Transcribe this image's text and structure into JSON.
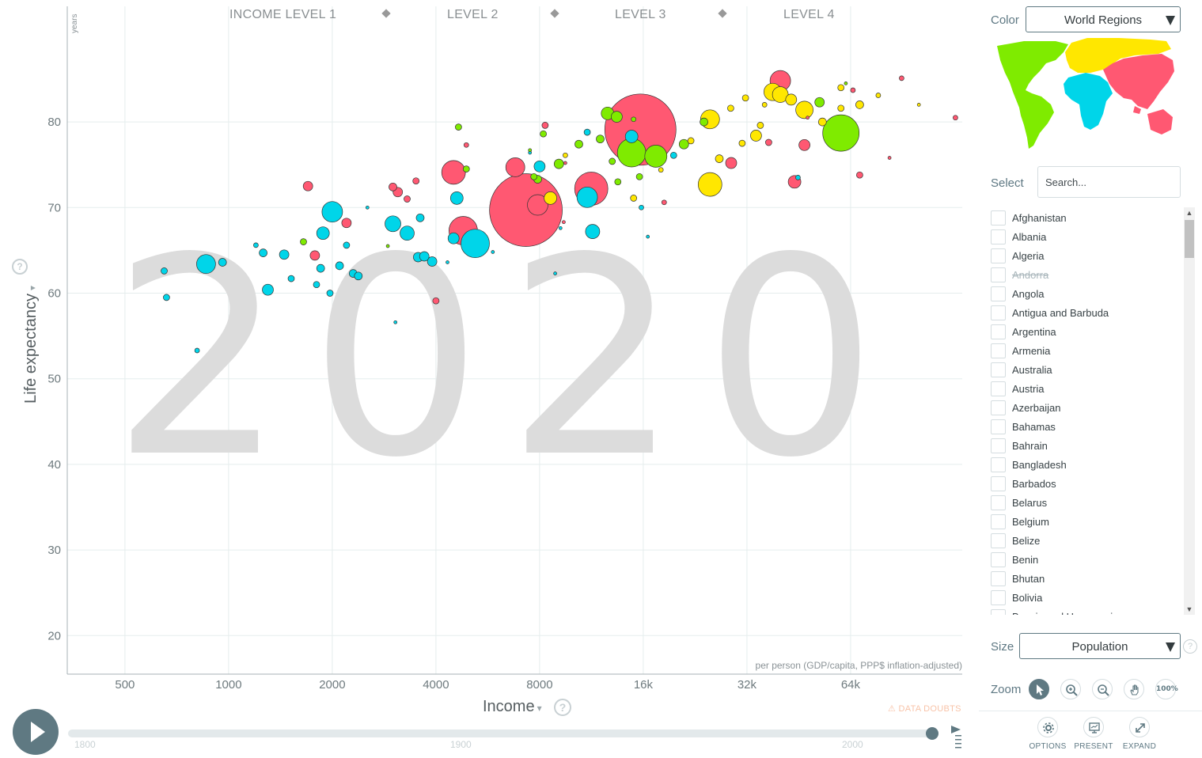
{
  "chart": {
    "year": "2020",
    "years_label": "years",
    "level_labels": [
      "INCOME LEVEL 1",
      "LEVEL 2",
      "LEVEL 3",
      "LEVEL 4"
    ],
    "y_axis_title": "Life expectancy",
    "x_axis_title": "Income",
    "x_unit_label": "per person (GDP/capita, PPP$ inflation-adjusted)",
    "data_doubts_label": "DATA DOUBTS",
    "help_glyph": "?",
    "dropdown_glyph": "▾"
  },
  "chart_data": {
    "type": "scatter",
    "xlabel": "Income",
    "ylabel": "Life expectancy",
    "xscale": "log2",
    "xlim": [
      340,
      135000
    ],
    "ylim": [
      15.5,
      93.5
    ],
    "x_ticks": [
      500,
      1000,
      2000,
      4000,
      8000,
      16000,
      32000,
      64000
    ],
    "x_tick_labels": [
      "500",
      "1000",
      "2000",
      "4000",
      "8000",
      "16k",
      "32k",
      "64k"
    ],
    "y_ticks": [
      20,
      30,
      40,
      50,
      60,
      70,
      80
    ],
    "grid": true,
    "region_colors": {
      "africa": "#00d5e9",
      "asia": "#ff5872",
      "europe": "#ffe700",
      "americas": "#7feb00"
    },
    "points": [
      {
        "x": 15700,
        "y": 79.1,
        "r": 45,
        "c": "asia"
      },
      {
        "x": 7300,
        "y": 69.7,
        "r": 46,
        "c": "asia"
      },
      {
        "x": 60000,
        "y": 78.7,
        "r": 23,
        "c": "americas"
      },
      {
        "x": 11300,
        "y": 72.2,
        "r": 21,
        "c": "asia"
      },
      {
        "x": 4800,
        "y": 67.3,
        "r": 18,
        "c": "asia"
      },
      {
        "x": 5200,
        "y": 65.8,
        "r": 18,
        "c": "africa"
      },
      {
        "x": 4500,
        "y": 74.1,
        "r": 15,
        "c": "asia"
      },
      {
        "x": 14800,
        "y": 76.4,
        "r": 18,
        "c": "americas"
      },
      {
        "x": 17400,
        "y": 76.0,
        "r": 14,
        "c": "americas"
      },
      {
        "x": 2000,
        "y": 69.5,
        "r": 13,
        "c": "africa"
      },
      {
        "x": 860,
        "y": 63.4,
        "r": 12,
        "c": "africa"
      },
      {
        "x": 40000,
        "y": 84.8,
        "r": 13,
        "c": "asia"
      },
      {
        "x": 25000,
        "y": 72.7,
        "r": 15,
        "c": "europe"
      },
      {
        "x": 7900,
        "y": 70.3,
        "r": 13,
        "c": "asia"
      },
      {
        "x": 11000,
        "y": 71.2,
        "r": 13,
        "c": "africa"
      },
      {
        "x": 25000,
        "y": 80.3,
        "r": 12,
        "c": "europe"
      },
      {
        "x": 47000,
        "y": 81.4,
        "r": 11,
        "c": "europe"
      },
      {
        "x": 38000,
        "y": 83.5,
        "r": 11,
        "c": "europe"
      },
      {
        "x": 40000,
        "y": 83.2,
        "r": 10,
        "c": "europe"
      },
      {
        "x": 6800,
        "y": 74.7,
        "r": 12,
        "c": "asia"
      },
      {
        "x": 3000,
        "y": 68.1,
        "r": 10,
        "c": "africa"
      },
      {
        "x": 3300,
        "y": 67.0,
        "r": 9,
        "c": "africa"
      },
      {
        "x": 11400,
        "y": 67.2,
        "r": 9,
        "c": "africa"
      },
      {
        "x": 1880,
        "y": 67.0,
        "r": 8,
        "c": "africa"
      },
      {
        "x": 4600,
        "y": 71.1,
        "r": 8,
        "c": "africa"
      },
      {
        "x": 4500,
        "y": 66.4,
        "r": 7,
        "c": "africa"
      },
      {
        "x": 3550,
        "y": 64.2,
        "r": 6,
        "c": "africa"
      },
      {
        "x": 3900,
        "y": 63.7,
        "r": 6,
        "c": "africa"
      },
      {
        "x": 1300,
        "y": 60.4,
        "r": 7,
        "c": "africa"
      },
      {
        "x": 1450,
        "y": 64.5,
        "r": 6,
        "c": "africa"
      },
      {
        "x": 1780,
        "y": 64.4,
        "r": 6,
        "c": "asia"
      },
      {
        "x": 1700,
        "y": 72.5,
        "r": 6,
        "c": "asia"
      },
      {
        "x": 8000,
        "y": 74.8,
        "r": 7,
        "c": "africa"
      },
      {
        "x": 14800,
        "y": 78.3,
        "r": 8,
        "c": "africa"
      },
      {
        "x": 12600,
        "y": 81.0,
        "r": 8,
        "c": "americas"
      },
      {
        "x": 13400,
        "y": 80.6,
        "r": 7,
        "c": "americas"
      },
      {
        "x": 21000,
        "y": 77.4,
        "r": 6,
        "c": "americas"
      },
      {
        "x": 34000,
        "y": 78.4,
        "r": 7,
        "c": "europe"
      },
      {
        "x": 9100,
        "y": 75.1,
        "r": 6,
        "c": "americas"
      },
      {
        "x": 10400,
        "y": 77.4,
        "r": 5,
        "c": "americas"
      },
      {
        "x": 47000,
        "y": 77.3,
        "r": 7,
        "c": "asia"
      },
      {
        "x": 68000,
        "y": 82.0,
        "r": 5,
        "c": "europe"
      },
      {
        "x": 52000,
        "y": 82.3,
        "r": 6,
        "c": "americas"
      },
      {
        "x": 43000,
        "y": 82.6,
        "r": 7,
        "c": "europe"
      },
      {
        "x": 2200,
        "y": 68.2,
        "r": 6,
        "c": "asia"
      },
      {
        "x": 3100,
        "y": 71.8,
        "r": 6,
        "c": "asia"
      },
      {
        "x": 3000,
        "y": 72.4,
        "r": 5,
        "c": "asia"
      },
      {
        "x": 2100,
        "y": 63.2,
        "r": 5,
        "c": "africa"
      },
      {
        "x": 2200,
        "y": 65.6,
        "r": 4,
        "c": "africa"
      },
      {
        "x": 1850,
        "y": 62.9,
        "r": 5,
        "c": "africa"
      },
      {
        "x": 2300,
        "y": 62.3,
        "r": 5,
        "c": "africa"
      },
      {
        "x": 2380,
        "y": 62.0,
        "r": 5,
        "c": "africa"
      },
      {
        "x": 1970,
        "y": 60.0,
        "r": 4,
        "c": "africa"
      },
      {
        "x": 1800,
        "y": 61.0,
        "r": 4,
        "c": "africa"
      },
      {
        "x": 1650,
        "y": 66.0,
        "r": 4,
        "c": "americas"
      },
      {
        "x": 650,
        "y": 62.6,
        "r": 4,
        "c": "africa"
      },
      {
        "x": 660,
        "y": 59.5,
        "r": 4,
        "c": "africa"
      },
      {
        "x": 960,
        "y": 63.6,
        "r": 5,
        "c": "africa"
      },
      {
        "x": 1260,
        "y": 64.7,
        "r": 5,
        "c": "africa"
      },
      {
        "x": 810,
        "y": 53.3,
        "r": 3,
        "c": "africa"
      },
      {
        "x": 1200,
        "y": 65.6,
        "r": 3,
        "c": "africa"
      },
      {
        "x": 1520,
        "y": 61.7,
        "r": 4,
        "c": "africa"
      },
      {
        "x": 3050,
        "y": 56.6,
        "r": 2,
        "c": "africa"
      },
      {
        "x": 4000,
        "y": 59.1,
        "r": 4,
        "c": "asia"
      },
      {
        "x": 3600,
        "y": 68.8,
        "r": 5,
        "c": "africa"
      },
      {
        "x": 3700,
        "y": 64.3,
        "r": 6,
        "c": "africa"
      },
      {
        "x": 3500,
        "y": 73.1,
        "r": 4,
        "c": "asia"
      },
      {
        "x": 3300,
        "y": 71.0,
        "r": 4,
        "c": "asia"
      },
      {
        "x": 4650,
        "y": 79.4,
        "r": 4,
        "c": "americas"
      },
      {
        "x": 4900,
        "y": 74.5,
        "r": 4,
        "c": "americas"
      },
      {
        "x": 4900,
        "y": 77.3,
        "r": 3,
        "c": "asia"
      },
      {
        "x": 7500,
        "y": 76.4,
        "r": 2,
        "c": "africa"
      },
      {
        "x": 7700,
        "y": 73.6,
        "r": 4,
        "c": "americas"
      },
      {
        "x": 8200,
        "y": 78.6,
        "r": 4,
        "c": "americas"
      },
      {
        "x": 8300,
        "y": 79.6,
        "r": 4,
        "c": "asia"
      },
      {
        "x": 7900,
        "y": 73.3,
        "r": 5,
        "c": "americas"
      },
      {
        "x": 8600,
        "y": 71.1,
        "r": 8,
        "c": "europe"
      },
      {
        "x": 9500,
        "y": 76.1,
        "r": 3,
        "c": "europe"
      },
      {
        "x": 9500,
        "y": 75.2,
        "r": 2,
        "c": "asia"
      },
      {
        "x": 9200,
        "y": 67.6,
        "r": 2,
        "c": "africa"
      },
      {
        "x": 9400,
        "y": 68.3,
        "r": 2,
        "c": "asia"
      },
      {
        "x": 11000,
        "y": 78.8,
        "r": 4,
        "c": "africa"
      },
      {
        "x": 12000,
        "y": 78.0,
        "r": 5,
        "c": "americas"
      },
      {
        "x": 13000,
        "y": 75.4,
        "r": 4,
        "c": "americas"
      },
      {
        "x": 13500,
        "y": 73.0,
        "r": 4,
        "c": "americas"
      },
      {
        "x": 15000,
        "y": 80.3,
        "r": 3,
        "c": "americas"
      },
      {
        "x": 15600,
        "y": 73.6,
        "r": 4,
        "c": "americas"
      },
      {
        "x": 15000,
        "y": 71.1,
        "r": 4,
        "c": "europe"
      },
      {
        "x": 15800,
        "y": 70.0,
        "r": 3,
        "c": "africa"
      },
      {
        "x": 16500,
        "y": 66.6,
        "r": 2,
        "c": "africa"
      },
      {
        "x": 18400,
        "y": 70.6,
        "r": 3,
        "c": "asia"
      },
      {
        "x": 18000,
        "y": 74.4,
        "r": 3,
        "c": "europe"
      },
      {
        "x": 19600,
        "y": 76.1,
        "r": 4,
        "c": "africa"
      },
      {
        "x": 22000,
        "y": 77.8,
        "r": 4,
        "c": "europe"
      },
      {
        "x": 24000,
        "y": 80.0,
        "r": 5,
        "c": "americas"
      },
      {
        "x": 26600,
        "y": 75.7,
        "r": 5,
        "c": "europe"
      },
      {
        "x": 28700,
        "y": 81.6,
        "r": 4,
        "c": "europe"
      },
      {
        "x": 28800,
        "y": 75.2,
        "r": 7,
        "c": "asia"
      },
      {
        "x": 31000,
        "y": 77.5,
        "r": 4,
        "c": "europe"
      },
      {
        "x": 31700,
        "y": 82.8,
        "r": 4,
        "c": "europe"
      },
      {
        "x": 35000,
        "y": 79.6,
        "r": 4,
        "c": "europe"
      },
      {
        "x": 36000,
        "y": 82.0,
        "r": 3,
        "c": "europe"
      },
      {
        "x": 37000,
        "y": 77.6,
        "r": 4,
        "c": "asia"
      },
      {
        "x": 53000,
        "y": 80.0,
        "r": 5,
        "c": "europe"
      },
      {
        "x": 60000,
        "y": 81.6,
        "r": 4,
        "c": "europe"
      },
      {
        "x": 60000,
        "y": 84.0,
        "r": 4,
        "c": "europe"
      },
      {
        "x": 65000,
        "y": 83.7,
        "r": 3,
        "c": "asia"
      },
      {
        "x": 77000,
        "y": 83.1,
        "r": 3,
        "c": "europe"
      },
      {
        "x": 68000,
        "y": 73.8,
        "r": 4,
        "c": "asia"
      },
      {
        "x": 90000,
        "y": 85.1,
        "r": 3,
        "c": "asia"
      },
      {
        "x": 83000,
        "y": 75.8,
        "r": 2,
        "c": "asia"
      },
      {
        "x": 101000,
        "y": 82.0,
        "r": 2,
        "c": "europe"
      },
      {
        "x": 129000,
        "y": 80.5,
        "r": 3,
        "c": "asia"
      },
      {
        "x": 62000,
        "y": 84.5,
        "r": 2,
        "c": "americas"
      },
      {
        "x": 45000,
        "y": 73.5,
        "r": 3,
        "c": "africa"
      },
      {
        "x": 48000,
        "y": 80.5,
        "r": 2,
        "c": "asia"
      },
      {
        "x": 44000,
        "y": 73.0,
        "r": 8,
        "c": "asia"
      },
      {
        "x": 4320,
        "y": 63.6,
        "r": 2,
        "c": "africa"
      },
      {
        "x": 2530,
        "y": 70.0,
        "r": 2,
        "c": "africa"
      },
      {
        "x": 2900,
        "y": 65.5,
        "r": 2,
        "c": "americas"
      },
      {
        "x": 7500,
        "y": 76.7,
        "r": 2,
        "c": "americas"
      },
      {
        "x": 5850,
        "y": 64.8,
        "r": 2,
        "c": "africa"
      },
      {
        "x": 8880,
        "y": 62.3,
        "r": 2,
        "c": "africa"
      }
    ]
  },
  "slider": {
    "ticks": [
      "1800",
      "1900",
      "2000"
    ]
  },
  "panel": {
    "color_label": "Color",
    "color_value": "World Regions",
    "select_label": "Select",
    "search_placeholder": "Search...",
    "countries": [
      {
        "name": "Afghanistan",
        "disabled": false
      },
      {
        "name": "Albania",
        "disabled": false
      },
      {
        "name": "Algeria",
        "disabled": false
      },
      {
        "name": "Andorra",
        "disabled": true
      },
      {
        "name": "Angola",
        "disabled": false
      },
      {
        "name": "Antigua and Barbuda",
        "disabled": false
      },
      {
        "name": "Argentina",
        "disabled": false
      },
      {
        "name": "Armenia",
        "disabled": false
      },
      {
        "name": "Australia",
        "disabled": false
      },
      {
        "name": "Austria",
        "disabled": false
      },
      {
        "name": "Azerbaijan",
        "disabled": false
      },
      {
        "name": "Bahamas",
        "disabled": false
      },
      {
        "name": "Bahrain",
        "disabled": false
      },
      {
        "name": "Bangladesh",
        "disabled": false
      },
      {
        "name": "Barbados",
        "disabled": false
      },
      {
        "name": "Belarus",
        "disabled": false
      },
      {
        "name": "Belgium",
        "disabled": false
      },
      {
        "name": "Belize",
        "disabled": false
      },
      {
        "name": "Benin",
        "disabled": false
      },
      {
        "name": "Bhutan",
        "disabled": false
      },
      {
        "name": "Bolivia",
        "disabled": false
      },
      {
        "name": "Bosnia and Herzegovina",
        "disabled": false
      }
    ],
    "size_label": "Size",
    "size_value": "Population",
    "zoom_label": "Zoom",
    "zoom_reset_label": "100%",
    "options_label": "OPTIONS",
    "present_label": "PRESENT",
    "expand_label": "EXPAND"
  }
}
